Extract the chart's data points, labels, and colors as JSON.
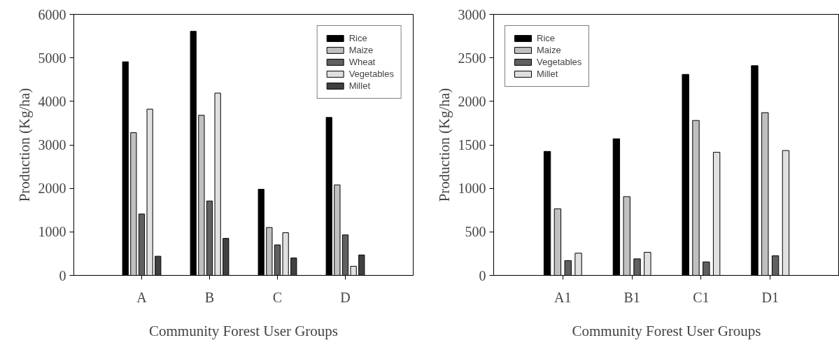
{
  "chart_data": [
    {
      "type": "bar",
      "xlabel": "Community Forest User Groups",
      "ylabel": "Production (Kg/ha)",
      "categories": [
        "A",
        "B",
        "C",
        "D"
      ],
      "ylim": [
        0,
        6000
      ],
      "yticks": [
        0,
        1000,
        2000,
        3000,
        4000,
        5000,
        6000
      ],
      "grid": false,
      "legend": "top right",
      "series": [
        {
          "name": "Rice",
          "color": "#000000",
          "values": [
            4910,
            5610,
            1980,
            3630
          ]
        },
        {
          "name": "Maize",
          "color": "#c0c0c0",
          "values": [
            3280,
            3680,
            1100,
            2080
          ]
        },
        {
          "name": "Wheat",
          "color": "#606060",
          "values": [
            1410,
            1710,
            700,
            930
          ]
        },
        {
          "name": "Vegetables",
          "color": "#e0e0e0",
          "values": [
            3820,
            4190,
            980,
            210
          ]
        },
        {
          "name": "Millet",
          "color": "#404040",
          "values": [
            440,
            850,
            400,
            470
          ]
        }
      ]
    },
    {
      "type": "bar",
      "xlabel": "Community Forest User Groups",
      "ylabel": "Production (Kg/ha)",
      "categories": [
        "A1",
        "B1",
        "C1",
        "D1"
      ],
      "ylim": [
        0,
        3000
      ],
      "yticks": [
        0,
        500,
        1000,
        1500,
        2000,
        2500,
        3000
      ],
      "grid": false,
      "legend": "top left",
      "series": [
        {
          "name": "Rice",
          "color": "#000000",
          "values": [
            1425,
            1570,
            2310,
            2410
          ]
        },
        {
          "name": "Maize",
          "color": "#c0c0c0",
          "values": [
            765,
            905,
            1780,
            1870
          ]
        },
        {
          "name": "Vegetables",
          "color": "#606060",
          "values": [
            170,
            190,
            155,
            225
          ]
        },
        {
          "name": "Millet",
          "color": "#e0e0e0",
          "values": [
            255,
            265,
            1415,
            1435
          ]
        }
      ]
    }
  ]
}
